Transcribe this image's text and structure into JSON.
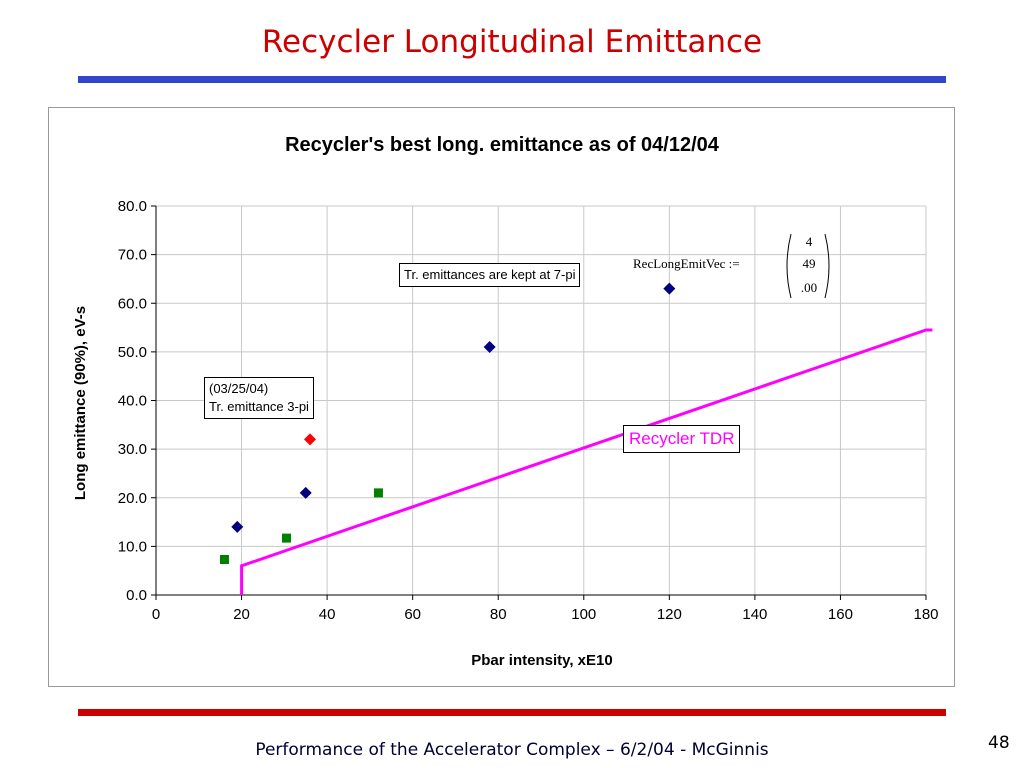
{
  "slide": {
    "title": "Recycler Longitudinal Emittance",
    "footer": "Performance of the Accelerator Complex – 6/2/04 - McGinnis",
    "page_number": "48",
    "colors": {
      "title": "#cc0000",
      "top_rule": "#3344cc",
      "bottom_rule": "#cc0000"
    }
  },
  "chart_data": {
    "type": "scatter",
    "title": "Recycler's best long. emittance as of 04/12/04",
    "xlabel": "Pbar intensity, xE10",
    "ylabel": "Long emittance (90%), eV-s",
    "xlim": [
      0,
      180
    ],
    "ylim": [
      0,
      80
    ],
    "x_ticks": [
      "0",
      "20",
      "40",
      "60",
      "80",
      "100",
      "120",
      "140",
      "160",
      "180"
    ],
    "y_ticks": [
      "0.0",
      "10.0",
      "20.0",
      "30.0",
      "40.0",
      "50.0",
      "60.0",
      "70.0",
      "80.0"
    ],
    "grid": true,
    "series": [
      {
        "marker": "diamond",
        "color": "#000080",
        "points": [
          {
            "x": 19,
            "y": 14
          },
          {
            "x": 35,
            "y": 21
          },
          {
            "x": 78,
            "y": 51
          },
          {
            "x": 120,
            "y": 63
          }
        ]
      },
      {
        "marker": "square",
        "color": "#008000",
        "points": [
          {
            "x": 16,
            "y": 7.3
          },
          {
            "x": 30.5,
            "y": 11.7
          },
          {
            "x": 52,
            "y": 21
          }
        ]
      },
      {
        "marker": "diamond",
        "color": "#ff0000",
        "points": [
          {
            "x": 36,
            "y": 32
          }
        ]
      },
      {
        "name": "Recycler TDR",
        "marker": "line",
        "color": "#ff00ff",
        "points": [
          {
            "x": 20,
            "y": 0
          },
          {
            "x": 20,
            "y": 6
          },
          {
            "x": 180,
            "y": 54.5
          },
          {
            "x": 181.5,
            "y": 54.5
          }
        ]
      }
    ],
    "annotations": [
      {
        "lines": [
          "(03/25/04)",
          "Tr. emittance 3-pi"
        ]
      },
      {
        "lines": [
          "Tr. emittances are kept at 7-pi"
        ]
      },
      {
        "lines": [
          "Recycler TDR"
        ],
        "color": "#ff00ff"
      }
    ],
    "formula": {
      "label": "RecLongEmitVec :=",
      "vector": [
        "4",
        "49",
        ".00"
      ]
    }
  }
}
